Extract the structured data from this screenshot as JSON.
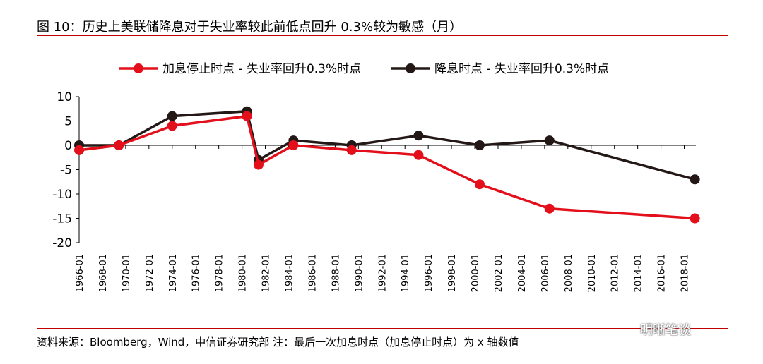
{
  "title": "图 10：历史上美联储降息对于失业率较此前低点回升 0.3%较为敏感（月）",
  "source": "资料来源：Bloomberg，Wind，中信证券研究部  注：最后一次加息时点（加息停止时点）为 x 轴数值",
  "watermark": "明晰笔谈",
  "colors": {
    "series1": "#e3101c",
    "series2": "#231815",
    "rule": "#c00000"
  },
  "chart_data": {
    "type": "line",
    "title": "",
    "xlabel": "",
    "ylabel": "",
    "ylim": [
      -20,
      10
    ],
    "yticks": [
      10,
      5,
      0,
      -5,
      -10,
      -15,
      -20
    ],
    "x_ticks": [
      "1966-01",
      "1968-01",
      "1970-01",
      "1972-01",
      "1974-01",
      "1976-01",
      "1978-01",
      "1980-01",
      "1982-01",
      "1984-01",
      "1986-01",
      "1988-01",
      "1990-01",
      "1992-01",
      "1994-01",
      "1996-01",
      "1998-01",
      "2000-01",
      "2002-01",
      "2004-01",
      "2006-01",
      "2008-01",
      "2010-01",
      "2012-01",
      "2014-01",
      "2016-01",
      "2018-01"
    ],
    "grid": false,
    "legend": "top",
    "series": [
      {
        "name": "加息停止时点 - 失业率回升0.3%时点",
        "points": [
          {
            "x": "1966-01",
            "y": -1
          },
          {
            "x": "1969-06",
            "y": 0
          },
          {
            "x": "1974-01",
            "y": 4
          },
          {
            "x": "1980-06",
            "y": 6
          },
          {
            "x": "1981-06",
            "y": -4
          },
          {
            "x": "1984-06",
            "y": 0
          },
          {
            "x": "1989-06",
            "y": -1
          },
          {
            "x": "1995-03",
            "y": -2
          },
          {
            "x": "2000-06",
            "y": -8
          },
          {
            "x": "2006-06",
            "y": -13
          },
          {
            "x": "2018-12",
            "y": -15
          }
        ]
      },
      {
        "name": "降息时点 - 失业率回升0.3%时点",
        "points": [
          {
            "x": "1966-01",
            "y": 0
          },
          {
            "x": "1969-06",
            "y": 0
          },
          {
            "x": "1974-01",
            "y": 6
          },
          {
            "x": "1980-06",
            "y": 7
          },
          {
            "x": "1981-06",
            "y": -3
          },
          {
            "x": "1984-06",
            "y": 1
          },
          {
            "x": "1989-06",
            "y": 0
          },
          {
            "x": "1995-03",
            "y": 2
          },
          {
            "x": "2000-06",
            "y": 0
          },
          {
            "x": "2006-06",
            "y": 1
          },
          {
            "x": "2018-12",
            "y": -7
          }
        ]
      }
    ]
  }
}
